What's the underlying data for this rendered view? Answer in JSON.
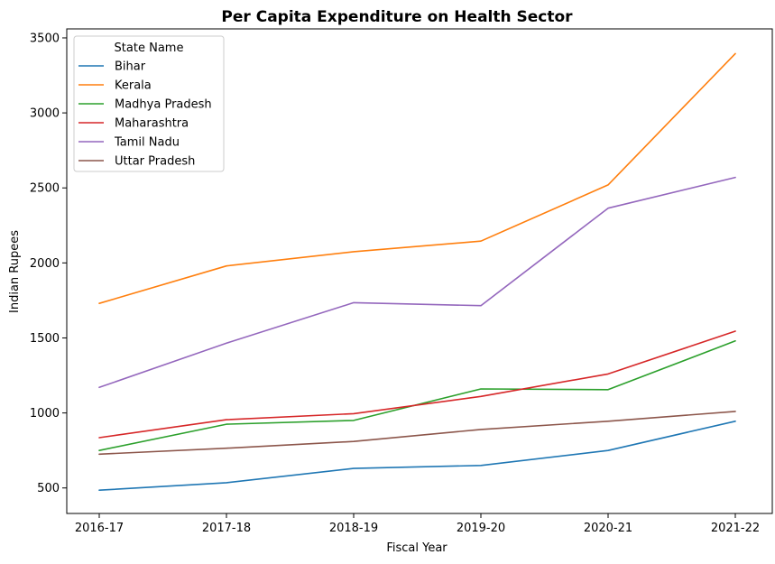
{
  "chart_data": {
    "type": "line",
    "title": "Per Capita Expenditure on Health Sector",
    "xlabel": "Fiscal Year",
    "ylabel": "Indian Rupees",
    "categories": [
      "2016-17",
      "2017-18",
      "2018-19",
      "2019-20",
      "2020-21",
      "2021-22"
    ],
    "yticks": [
      500,
      1000,
      1500,
      2000,
      2500,
      3000,
      3500
    ],
    "ylim": [
      330,
      3560
    ],
    "grid": false,
    "legend": {
      "title": "State Name",
      "position": "top-left"
    },
    "series": [
      {
        "name": "Bihar",
        "color": "#1f77b4",
        "values": [
          485,
          535,
          630,
          650,
          750,
          945
        ]
      },
      {
        "name": "Kerala",
        "color": "#ff7f0e",
        "values": [
          1730,
          1980,
          2075,
          2145,
          2520,
          3395
        ]
      },
      {
        "name": "Madhya Pradesh",
        "color": "#2ca02c",
        "values": [
          750,
          925,
          950,
          1160,
          1155,
          1480
        ]
      },
      {
        "name": "Maharashtra",
        "color": "#d62728",
        "values": [
          835,
          955,
          995,
          1110,
          1260,
          1545
        ]
      },
      {
        "name": "Tamil Nadu",
        "color": "#9467bd",
        "values": [
          1170,
          1465,
          1735,
          1715,
          2365,
          2570
        ]
      },
      {
        "name": "Uttar Pradesh",
        "color": "#8c564b",
        "values": [
          725,
          765,
          810,
          890,
          945,
          1010
        ]
      }
    ]
  }
}
